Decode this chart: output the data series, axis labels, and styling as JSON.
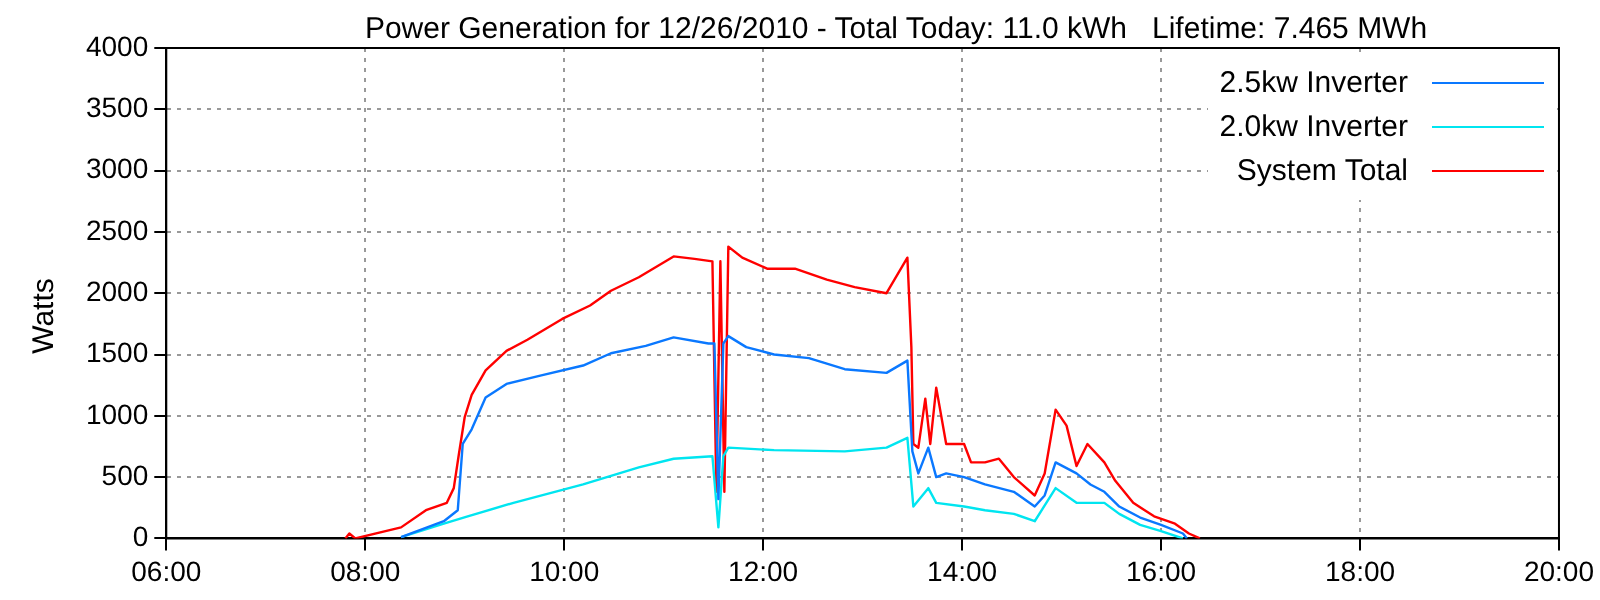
{
  "chart_data": {
    "type": "line",
    "title": "Power Generation for 12/26/2010 - Total Today: 11.0 kWh   Lifetime: 7.465 MWh",
    "ylabel": "Watts",
    "xlim": [
      6,
      20
    ],
    "xticks": [
      {
        "value": 6,
        "label": "06:00"
      },
      {
        "value": 8,
        "label": "08:00"
      },
      {
        "value": 10,
        "label": "10:00"
      },
      {
        "value": 12,
        "label": "12:00"
      },
      {
        "value": 14,
        "label": "14:00"
      },
      {
        "value": 16,
        "label": "16:00"
      },
      {
        "value": 18,
        "label": "18:00"
      },
      {
        "value": 20,
        "label": "20:00"
      }
    ],
    "ylim": [
      0,
      4000
    ],
    "yticks": [
      0,
      500,
      1000,
      1500,
      2000,
      2500,
      3000,
      3500,
      4000
    ],
    "grid": true,
    "legend": "top right",
    "marker": "none",
    "line_style": "solid",
    "series": [
      {
        "name": "2.5kw Inverter",
        "color": "#0a78ff",
        "x": [
          8.36,
          8.79,
          8.93,
          8.98,
          9.07,
          9.21,
          9.42,
          9.77,
          10.19,
          10.47,
          10.82,
          11.1,
          11.45,
          11.51,
          11.55,
          11.6,
          11.65,
          11.83,
          12.11,
          12.46,
          12.82,
          13.24,
          13.45,
          13.5,
          13.56,
          13.66,
          13.74,
          13.84,
          14.02,
          14.23,
          14.52,
          14.73,
          14.83,
          14.94,
          15.15,
          15.29,
          15.43,
          15.58,
          15.79,
          16.0,
          16.22,
          16.26
        ],
        "values": [
          10,
          140,
          230,
          770,
          890,
          1150,
          1260,
          1330,
          1410,
          1510,
          1570,
          1640,
          1590,
          1590,
          320,
          1590,
          1650,
          1560,
          1500,
          1470,
          1380,
          1350,
          1450,
          710,
          530,
          740,
          500,
          530,
          500,
          440,
          380,
          260,
          350,
          620,
          530,
          440,
          380,
          260,
          170,
          110,
          40,
          0
        ]
      },
      {
        "name": "2.0kw Inverter",
        "color": "#00e5f0",
        "x": [
          8.36,
          8.79,
          9.03,
          9.49,
          10.19,
          10.75,
          11.1,
          11.49,
          11.55,
          11.6,
          11.65,
          12.11,
          12.82,
          13.24,
          13.45,
          13.51,
          13.66,
          13.74,
          14.02,
          14.23,
          14.52,
          14.73,
          14.94,
          15.15,
          15.43,
          15.58,
          15.79,
          16.0,
          16.22
        ],
        "values": [
          10,
          120,
          180,
          290,
          440,
          580,
          650,
          670,
          90,
          670,
          740,
          720,
          710,
          740,
          820,
          260,
          410,
          290,
          260,
          230,
          200,
          140,
          410,
          290,
          290,
          200,
          110,
          60,
          0
        ]
      },
      {
        "name": "System Total",
        "color": "#ff0000",
        "x": [
          7.8,
          7.84,
          7.9,
          8.36,
          8.61,
          8.82,
          8.89,
          8.94,
          9.0,
          9.07,
          9.21,
          9.42,
          9.63,
          9.98,
          10.26,
          10.47,
          10.75,
          11.1,
          11.31,
          11.49,
          11.53,
          11.57,
          11.61,
          11.65,
          11.79,
          12.04,
          12.32,
          12.64,
          12.92,
          13.24,
          13.45,
          13.49,
          13.51,
          13.56,
          13.63,
          13.68,
          13.74,
          13.84,
          14.02,
          14.09,
          14.23,
          14.37,
          14.52,
          14.73,
          14.83,
          14.94,
          15.05,
          15.15,
          15.26,
          15.43,
          15.54,
          15.72,
          15.93,
          16.14,
          16.28,
          16.39
        ],
        "values": [
          0,
          40,
          0,
          90,
          230,
          290,
          410,
          680,
          990,
          1170,
          1370,
          1530,
          1620,
          1790,
          1900,
          2020,
          2130,
          2300,
          2280,
          2260,
          380,
          2260,
          380,
          2380,
          2290,
          2200,
          2200,
          2110,
          2050,
          2000,
          2290,
          1560,
          770,
          740,
          1140,
          770,
          1230,
          770,
          770,
          620,
          620,
          650,
          500,
          350,
          530,
          1050,
          920,
          590,
          770,
          620,
          470,
          290,
          180,
          120,
          40,
          0
        ]
      }
    ]
  }
}
